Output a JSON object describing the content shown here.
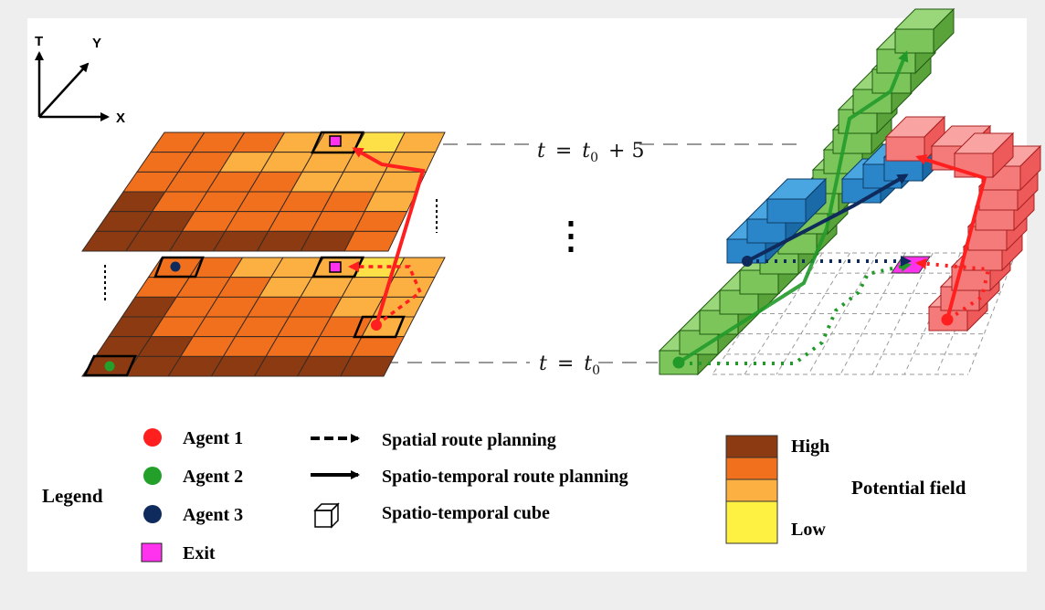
{
  "axes": {
    "t": "T",
    "y": "Y",
    "x": "X"
  },
  "time_labels": {
    "top": {
      "t": "t",
      "eq": "=",
      "t0": "t",
      "sub": "0",
      "plus": "+ 5"
    },
    "bottom": {
      "t": "t",
      "eq": "=",
      "t0": "t",
      "sub": "0"
    }
  },
  "legend": {
    "title": "Legend",
    "agents": [
      {
        "label": "Agent 1",
        "color": "#ff1f1f"
      },
      {
        "label": "Agent 2",
        "color": "#22a02a"
      },
      {
        "label": "Agent 3",
        "color": "#0f2a5c"
      }
    ],
    "exit": {
      "label": "Exit",
      "color": "#ff33ee"
    },
    "routes": {
      "spatial": "Spatial route planning",
      "spatiotemporal": "Spatio-temporal route planning",
      "cube": "Spatio-temporal cube"
    },
    "potential": {
      "title": "Potential field",
      "high": "High",
      "low": "Low",
      "colors": [
        "#8b3a12",
        "#f0701e",
        "#fbb041",
        "#fff142"
      ]
    }
  },
  "field_colors": {
    "dark": "#8b3a12",
    "orange": "#f0701e",
    "lightorange": "#fbb041",
    "yellow": "#fddf48"
  }
}
